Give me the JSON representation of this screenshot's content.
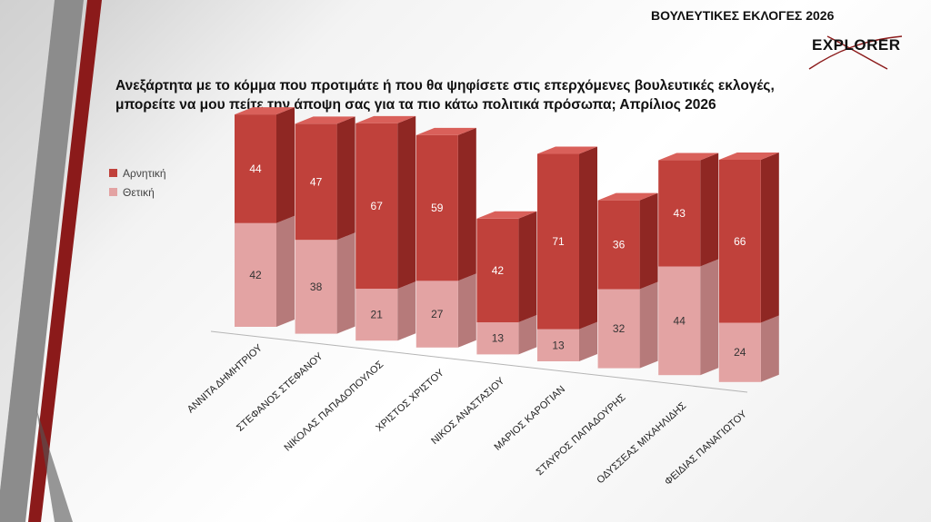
{
  "header": {
    "title": "ΒΟΥΛΕΥΤΙΚΕΣ ΕΚΛΟΓΕΣ 2026",
    "logo_text": "EXPLORER"
  },
  "question": {
    "line1": "Ανεξάρτητα με το κόμμα που προτιμάτε ή που θα ψηφίσετε στις επερχόμενες βουλευτικές εκλογές,",
    "line2": "μπορείτε να μου πείτε την άποψη σας για τα πιο κάτω πολιτικά πρόσωπα; Απρίλιος 2026"
  },
  "colors": {
    "negative": "#c0413b",
    "negative_dark": "#8f2723",
    "negative_top": "#d9605a",
    "positive": "#e3a3a3",
    "positive_dark": "#b67a7a",
    "accent": "#8b1a1a"
  },
  "chart_data": {
    "type": "bar",
    "stacked": true,
    "categories": [
      "ΑΝΝΙΤΑ ΔΗΜΗΤΡΙΟΥ",
      "ΣΤΕΦΑΝΟΣ ΣΤΕΦΑΝΟΥ",
      "ΝΙΚΟΛΑΣ ΠΑΠΑΔΟΠΟΥΛΟΣ",
      "ΧΡΙΣΤΟΣ ΧΡΙΣΤΟΥ",
      "ΝΙΚΟΣ ΑΝΑΣΤΑΣΙΟΥ",
      "ΜΑΡΙΟΣ ΚΑΡΟΓΙΑΝ",
      "ΣΤΑΥΡΟΣ ΠΑΠΑΔΟΥΡΗΣ",
      "ΟΔΥΣΣΕΑΣ ΜΙΧΑΗΛΙΔΗΣ",
      "ΦΕΙΔΙΑΣ ΠΑΝΑΓΙΩΤΟΥ"
    ],
    "series": [
      {
        "name": "Θετική",
        "values": [
          42,
          38,
          21,
          27,
          13,
          13,
          32,
          44,
          24
        ]
      },
      {
        "name": "Αρνητική",
        "values": [
          44,
          47,
          67,
          59,
          42,
          71,
          36,
          43,
          66
        ]
      }
    ],
    "legend_position": "left",
    "grid": false
  }
}
